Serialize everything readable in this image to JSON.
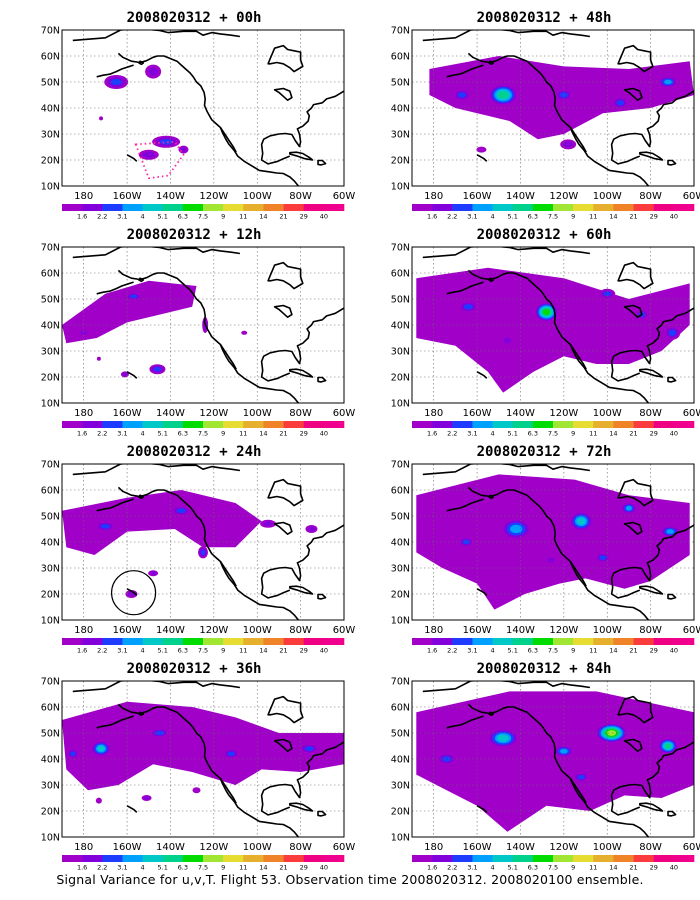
{
  "panels": [
    {
      "title": "2008020312 + 00h",
      "forecast_hour": 0
    },
    {
      "title": "2008020312 + 48h",
      "forecast_hour": 48
    },
    {
      "title": "2008020312 + 12h",
      "forecast_hour": 12
    },
    {
      "title": "2008020312 + 60h",
      "forecast_hour": 60
    },
    {
      "title": "2008020312 + 24h",
      "forecast_hour": 24
    },
    {
      "title": "2008020312 + 72h",
      "forecast_hour": 72
    },
    {
      "title": "2008020312 + 36h",
      "forecast_hour": 36
    },
    {
      "title": "2008020312 + 84h",
      "forecast_hour": 84
    }
  ],
  "lat_labels": [
    "70N",
    "60N",
    "50N",
    "40N",
    "30N",
    "20N",
    "10N"
  ],
  "lon_labels": [
    "180",
    "160W",
    "140W",
    "120W",
    "100W",
    "80W",
    "60W"
  ],
  "colorbar": {
    "levels": [
      "1.6",
      "2.2",
      "3.1",
      "4",
      "5.1",
      "6.3",
      "7.5",
      "9",
      "11",
      "14",
      "21",
      "29",
      "40"
    ],
    "colors": [
      "#a000c8",
      "#8200dc",
      "#1e3cff",
      "#00a0ff",
      "#00c8c8",
      "#00d28c",
      "#00dc00",
      "#a0e632",
      "#e6dc32",
      "#e6af2d",
      "#f08228",
      "#fa3c3c",
      "#f00082",
      "#f0008c"
    ]
  },
  "footer": "Signal Variance for u,v,T. Flight 53. Observation time 2008020312. 2008020100 ensemble."
}
